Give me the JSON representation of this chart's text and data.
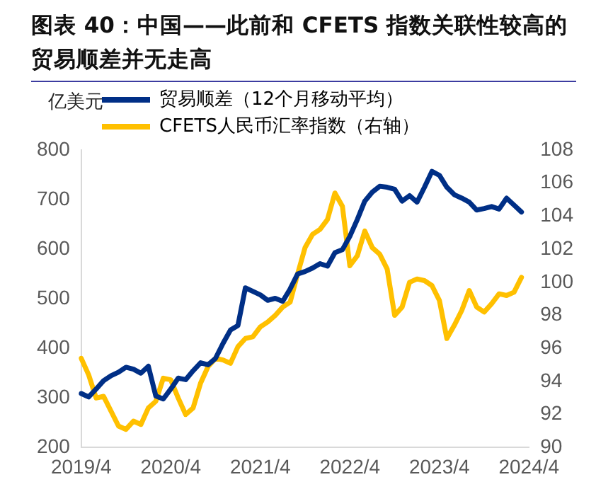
{
  "chart_data": {
    "type": "line",
    "title": "图表 40：中国——此前和 CFETS 指数关联性较高的贸易顺差并无走高",
    "ylabel": "亿美元",
    "categories": [
      "2019/4",
      null,
      null,
      null,
      null,
      null,
      null,
      null,
      null,
      null,
      null,
      null,
      "2020/4",
      null,
      null,
      null,
      null,
      null,
      null,
      null,
      null,
      null,
      null,
      null,
      "2021/4",
      null,
      null,
      null,
      null,
      null,
      null,
      null,
      null,
      null,
      null,
      null,
      "2022/4",
      null,
      null,
      null,
      null,
      null,
      null,
      null,
      null,
      null,
      null,
      null,
      "2023/4",
      null,
      null,
      null,
      null,
      null,
      null,
      null,
      null,
      null,
      null,
      null,
      "2024/4"
    ],
    "series": [
      {
        "name": "贸易顺差（12个月移动平均）",
        "color": "#002f86",
        "values": [
          309,
          302,
          318,
          335,
          345,
          352,
          362,
          358,
          350,
          364,
          304,
          298,
          318,
          340,
          337,
          355,
          371,
          367,
          380,
          410,
          437,
          446,
          522,
          515,
          508,
          497,
          501,
          495,
          520,
          550,
          555,
          562,
          571,
          566,
          593,
          599,
          626,
          660,
          697,
          715,
          727,
          725,
          721,
          697,
          708,
          695,
          725,
          757,
          749,
          725,
          710,
          703,
          695,
          679,
          682,
          686,
          681,
          703,
          689,
          675,
          null
        ]
      },
      {
        "name": "CFETS人民币汇率指数（右轴）",
        "color": "#ffc000",
        "axis": "y2",
        "values": [
          95.4,
          94.4,
          93.0,
          93.1,
          92.2,
          91.3,
          91.1,
          91.6,
          91.4,
          92.4,
          92.8,
          94.2,
          94.1,
          93.0,
          92.0,
          92.4,
          93.9,
          94.9,
          95.4,
          95.3,
          95.1,
          96.1,
          96.6,
          96.7,
          97.3,
          97.6,
          98.0,
          98.5,
          98.8,
          100.5,
          102.1,
          102.9,
          103.2,
          103.8,
          105.4,
          104.6,
          101.0,
          101.6,
          103.1,
          102.1,
          101.7,
          100.8,
          98.0,
          98.5,
          100.0,
          100.2,
          100.1,
          99.8,
          98.9,
          96.6,
          97.4,
          98.3,
          99.5,
          98.5,
          98.2,
          98.7,
          99.3,
          99.2,
          99.4,
          100.3,
          null
        ]
      }
    ],
    "ylim": [
      200,
      800
    ],
    "yticks": [
      200,
      300,
      400,
      500,
      600,
      700,
      800
    ],
    "y2lim": [
      90,
      108
    ],
    "y2ticks": [
      90,
      92,
      94,
      96,
      98,
      100,
      102,
      104,
      106,
      108
    ],
    "grid": false,
    "legend": "top left",
    "marker": "none",
    "line_style": "solid"
  }
}
